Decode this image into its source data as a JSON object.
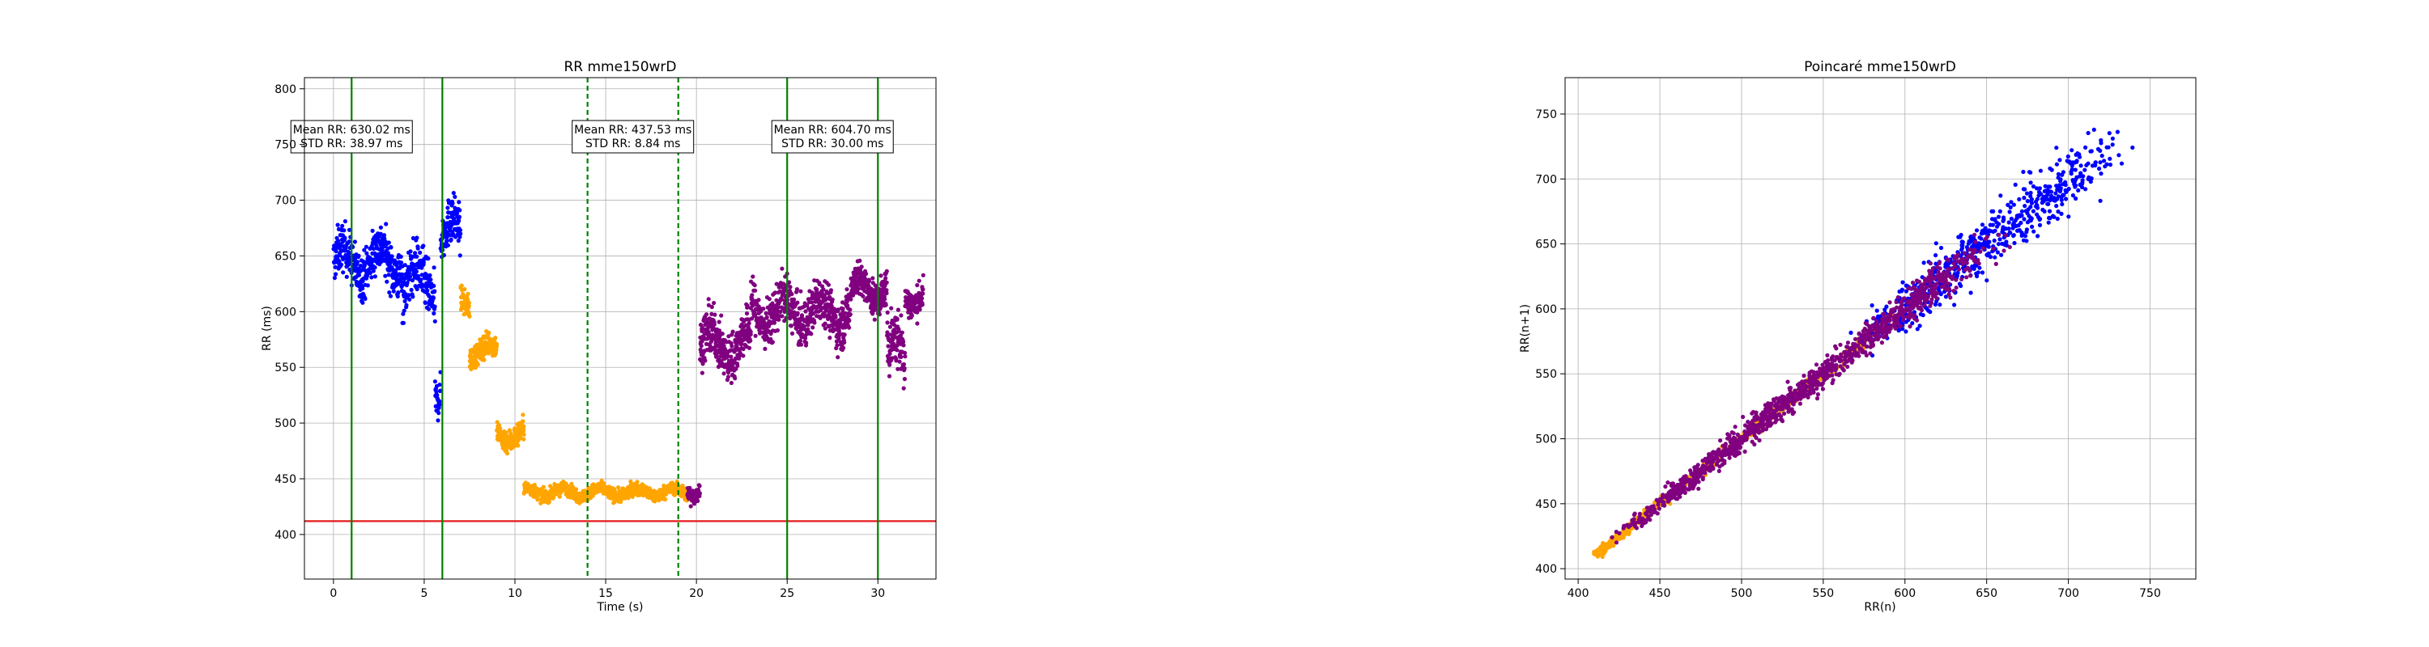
{
  "chart_data": [
    {
      "type": "scatter",
      "title": "RR mme150wrD",
      "xlabel": "Time (s)",
      "ylabel": "RR (ms)",
      "xlim": [
        -1.6,
        33.2
      ],
      "ylim": [
        360,
        810
      ],
      "xticks": [
        "0",
        "5",
        "10",
        "15",
        "20",
        "25",
        "30"
      ],
      "yticks": [
        "400",
        "450",
        "500",
        "550",
        "600",
        "650",
        "700",
        "750",
        "800"
      ],
      "grid": true,
      "threshold_line": {
        "y": 412,
        "color": "#e41a1c"
      },
      "solid_vlines": [
        1,
        6,
        25,
        30
      ],
      "dashed_vlines": [
        14,
        19
      ],
      "annotations": [
        {
          "x": 1.0,
          "y": 757,
          "lines": [
            "Mean RR: 630.02 ms",
            "STD RR: 38.97 ms"
          ]
        },
        {
          "x": 16.5,
          "y": 757,
          "lines": [
            "Mean RR: 437.53 ms",
            "STD RR: 8.84 ms"
          ]
        },
        {
          "x": 27.5,
          "y": 757,
          "lines": [
            "Mean RR: 604.70 ms",
            "STD RR: 30.00 ms"
          ]
        }
      ],
      "series": [
        {
          "color": "#0000ff",
          "segments": [
            {
              "t0": 0,
              "t1": 3.8,
              "base": 645,
              "spread": 30,
              "count": 380
            },
            {
              "t0": 3.8,
              "t1": 5.6,
              "base": 625,
              "spread": 35,
              "count": 170
            },
            {
              "t0": 5.6,
              "t1": 5.9,
              "base": 530,
              "spread": 25,
              "count": 30
            },
            {
              "t0": 5.9,
              "t1": 7.0,
              "base": 670,
              "spread": 30,
              "count": 110
            }
          ]
        },
        {
          "color": "#ffa500",
          "segments": [
            {
              "t0": 7.0,
              "t1": 7.5,
              "base": 610,
              "spread": 15,
              "count": 50
            },
            {
              "t0": 7.5,
              "t1": 9.0,
              "base": 565,
              "spread": 15,
              "count": 160
            },
            {
              "t0": 9.0,
              "t1": 10.5,
              "base": 490,
              "spread": 15,
              "count": 160
            },
            {
              "t0": 10.5,
              "t1": 19.5,
              "base": 438,
              "spread": 8,
              "count": 900
            }
          ]
        },
        {
          "color": "#800080",
          "segments": [
            {
              "t0": 19.5,
              "t1": 20.2,
              "base": 440,
              "spread": 12,
              "count": 60
            },
            {
              "t0": 20.2,
              "t1": 23.0,
              "base": 570,
              "spread": 30,
              "count": 320
            },
            {
              "t0": 23.0,
              "t1": 28.5,
              "base": 600,
              "spread": 30,
              "count": 560
            },
            {
              "t0": 28.5,
              "t1": 30.5,
              "base": 620,
              "spread": 22,
              "count": 220
            },
            {
              "t0": 30.5,
              "t1": 31.5,
              "base": 560,
              "spread": 40,
              "count": 100
            },
            {
              "t0": 31.5,
              "t1": 32.5,
              "base": 615,
              "spread": 20,
              "count": 100
            }
          ]
        }
      ]
    },
    {
      "type": "scatter",
      "title": "Poincaré mme150wrD",
      "xlabel": "RR(n)",
      "ylabel": "RR(n+1)",
      "xlim": [
        392,
        778
      ],
      "ylim": [
        392,
        778
      ],
      "xticks": [
        "400",
        "450",
        "500",
        "550",
        "600",
        "650",
        "700",
        "750"
      ],
      "yticks": [
        "400",
        "450",
        "500",
        "550",
        "600",
        "650",
        "700",
        "750"
      ],
      "grid": true,
      "series": [
        {
          "color": "#ffa500",
          "range": [
            412,
            600
          ],
          "spread": 5,
          "count": 700
        },
        {
          "color": "#0000ff",
          "range": [
            570,
            735
          ],
          "spread": 14,
          "count": 650
        },
        {
          "color": "#800080",
          "range": [
            420,
            660
          ],
          "spread": 10,
          "count": 1200
        }
      ]
    }
  ]
}
